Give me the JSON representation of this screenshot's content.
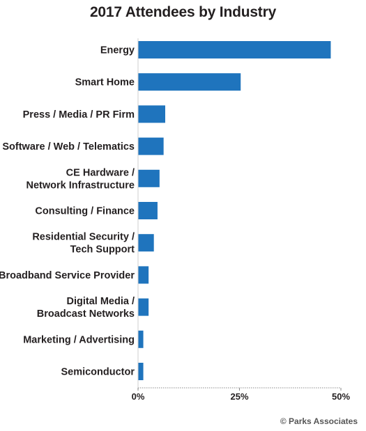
{
  "chart_data": {
    "type": "bar",
    "orientation": "horizontal",
    "title": "2017 Attendees by Industry",
    "xlabel": "",
    "ylabel": "",
    "categories": [
      [
        "Energy"
      ],
      [
        "Smart Home"
      ],
      [
        "Press / Media / PR Firm"
      ],
      [
        "Software / Web / Telematics"
      ],
      [
        "CE Hardware /",
        "Network Infrastructure"
      ],
      [
        "Consulting / Finance"
      ],
      [
        "Residential Security /",
        "Tech Support"
      ],
      [
        "Broadband Service Provider"
      ],
      [
        "Digital Media /",
        "Broadcast Networks"
      ],
      [
        "Marketing / Advertising"
      ],
      [
        "Semiconductor"
      ]
    ],
    "values": [
      47.5,
      25.3,
      6.7,
      6.3,
      5.3,
      4.8,
      3.9,
      2.6,
      2.6,
      1.3,
      1.3
    ],
    "unit": "%",
    "xlim": [
      0,
      50
    ],
    "xticks": [
      0,
      25,
      50
    ],
    "xtick_labels": [
      "0%",
      "25%",
      "50%"
    ],
    "grid": false,
    "legend": "none",
    "bar_color": "#1f74bd",
    "source": "© Parks Associates"
  }
}
